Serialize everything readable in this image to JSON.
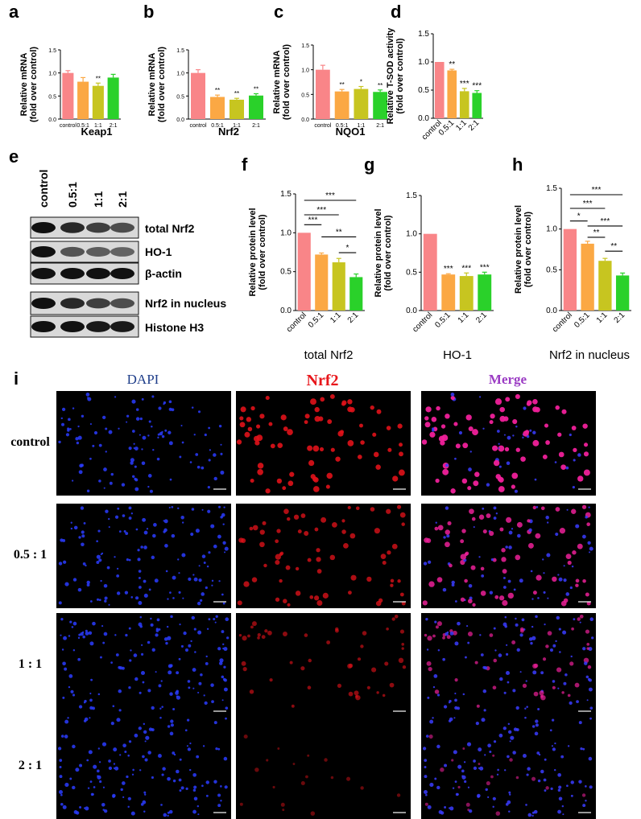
{
  "panel_labels": [
    "a",
    "b",
    "c",
    "d",
    "e",
    "f",
    "g",
    "h",
    "i"
  ],
  "colors": {
    "control": "#f98588",
    "r05": "#fba844",
    "r11": "#c7c520",
    "r21": "#2ad12a"
  },
  "chart_data": [
    {
      "id": "a",
      "type": "bar",
      "categories": [
        "control",
        "0.5:1",
        "1:1",
        "2:1"
      ],
      "values": [
        1.0,
        0.81,
        0.72,
        0.9
      ],
      "errors": [
        0.05,
        0.09,
        0.06,
        0.07
      ],
      "significance": [
        "",
        "",
        "**",
        ""
      ],
      "ylabel": [
        "Relative mRNA",
        "(fold over control)"
      ],
      "xlabel": "Keap1",
      "ylim": [
        0,
        1.5
      ],
      "yticks": [
        0.0,
        0.5,
        1.0,
        1.5
      ]
    },
    {
      "id": "b",
      "type": "bar",
      "categories": [
        "control",
        "0.5:1",
        "1:1",
        "2:1"
      ],
      "values": [
        1.0,
        0.48,
        0.42,
        0.51
      ],
      "errors": [
        0.07,
        0.04,
        0.03,
        0.04
      ],
      "significance": [
        "",
        "**",
        "**",
        "**"
      ],
      "ylabel": [
        "Relative mRNA",
        "(fold over control)"
      ],
      "xlabel": "Nrf2",
      "ylim": [
        0,
        1.5
      ],
      "yticks": [
        0.0,
        0.5,
        1.0,
        1.5
      ]
    },
    {
      "id": "c",
      "type": "bar",
      "categories": [
        "control",
        "0.5:1",
        "1:1",
        "2:1"
      ],
      "values": [
        1.0,
        0.56,
        0.61,
        0.55
      ],
      "errors": [
        0.09,
        0.04,
        0.05,
        0.04
      ],
      "significance": [
        "",
        "**",
        "*",
        "**"
      ],
      "ylabel": [
        "Relative mRNA",
        "(fold over control)"
      ],
      "xlabel": "NQO1",
      "ylim": [
        0,
        1.5
      ],
      "yticks": [
        0.0,
        0.5,
        1.0,
        1.5
      ]
    },
    {
      "id": "d",
      "type": "bar",
      "categories": [
        "control",
        "0.5:1",
        "1:1",
        "2:1"
      ],
      "values": [
        1.0,
        0.85,
        0.48,
        0.45
      ],
      "errors": [
        0.0,
        0.02,
        0.05,
        0.04
      ],
      "significance": [
        "",
        "**",
        "***",
        "***"
      ],
      "ylabel": [
        "Relative T-SOD activity",
        "(fold over control)"
      ],
      "xlabel": "",
      "ylim": [
        0,
        1.5
      ],
      "yticks": [
        0.0,
        0.5,
        1.0,
        1.5
      ]
    },
    {
      "id": "f",
      "type": "bar",
      "categories": [
        "control",
        "0.5:1",
        "1:1",
        "2:1"
      ],
      "values": [
        1.0,
        0.72,
        0.62,
        0.43
      ],
      "errors": [
        0.0,
        0.02,
        0.05,
        0.04
      ],
      "significance": [
        "",
        "",
        "",
        ""
      ],
      "brackets": [
        {
          "from": 0,
          "to": 3,
          "label": "***"
        },
        {
          "from": 0,
          "to": 2,
          "label": "***"
        },
        {
          "from": 0,
          "to": 1,
          "label": "***"
        },
        {
          "from": 1,
          "to": 3,
          "label": "**"
        },
        {
          "from": 2,
          "to": 3,
          "label": "*"
        }
      ],
      "ylabel": [
        "Relative protein level",
        "(fold over control)"
      ],
      "xlabel": "total Nrf2",
      "ylim": [
        0,
        1.5
      ],
      "yticks": [
        0.0,
        0.5,
        1.0,
        1.5
      ]
    },
    {
      "id": "g",
      "type": "bar",
      "categories": [
        "control",
        "0.5:1",
        "1:1",
        "2:1"
      ],
      "values": [
        1.0,
        0.47,
        0.45,
        0.47
      ],
      "errors": [
        0.0,
        0.01,
        0.04,
        0.03
      ],
      "significance": [
        "",
        "***",
        "***",
        "***"
      ],
      "ylabel": [
        "Relative protein level",
        "(fold over control)"
      ],
      "xlabel": "HO-1",
      "ylim": [
        0,
        1.5
      ],
      "yticks": [
        0.0,
        0.5,
        1.0,
        1.5
      ]
    },
    {
      "id": "h",
      "type": "bar",
      "categories": [
        "control",
        "0.5:1",
        "1:1",
        "2:1"
      ],
      "values": [
        1.0,
        0.82,
        0.61,
        0.43
      ],
      "errors": [
        0.0,
        0.03,
        0.03,
        0.03
      ],
      "significance": [
        "",
        "",
        "",
        ""
      ],
      "brackets": [
        {
          "from": 0,
          "to": 3,
          "label": "***"
        },
        {
          "from": 0,
          "to": 2,
          "label": "***"
        },
        {
          "from": 0,
          "to": 1,
          "label": "*"
        },
        {
          "from": 1,
          "to": 3,
          "label": "***"
        },
        {
          "from": 1,
          "to": 2,
          "label": "**"
        },
        {
          "from": 2,
          "to": 3,
          "label": "**"
        }
      ],
      "ylabel": [
        "Relative protein level",
        "(fold over control)"
      ],
      "xlabel": "Nrf2 in nucleus",
      "ylim": [
        0,
        1.5
      ],
      "yticks": [
        0.0,
        0.5,
        1.0,
        1.5
      ]
    }
  ],
  "western_blot": {
    "lanes": [
      "control",
      "0.5:1",
      "1:1",
      "2:1"
    ],
    "bands": [
      "total Nrf2",
      "HO-1",
      "β-actin",
      "Nrf2 in nucleus",
      "Histone H3"
    ],
    "intensity": [
      [
        1.0,
        0.85,
        0.7,
        0.6
      ],
      [
        1.0,
        0.55,
        0.5,
        0.45
      ],
      [
        1.0,
        1.0,
        1.0,
        1.0
      ],
      [
        1.0,
        0.85,
        0.7,
        0.6
      ],
      [
        1.0,
        1.0,
        0.95,
        0.95
      ]
    ]
  },
  "microscopy": {
    "columns": [
      "DAPI",
      "Nrf2",
      "Merge"
    ],
    "column_colors": [
      "#1f3e8a",
      "#e8161b",
      "#9b3cc4"
    ],
    "rows": [
      "control",
      "0.5 : 1",
      "1 : 1",
      "2 : 1"
    ],
    "nrf2_intensity": [
      1.0,
      0.75,
      0.45,
      0.15
    ],
    "dapi_density": [
      0.6,
      0.9,
      1.0,
      1.0
    ]
  }
}
